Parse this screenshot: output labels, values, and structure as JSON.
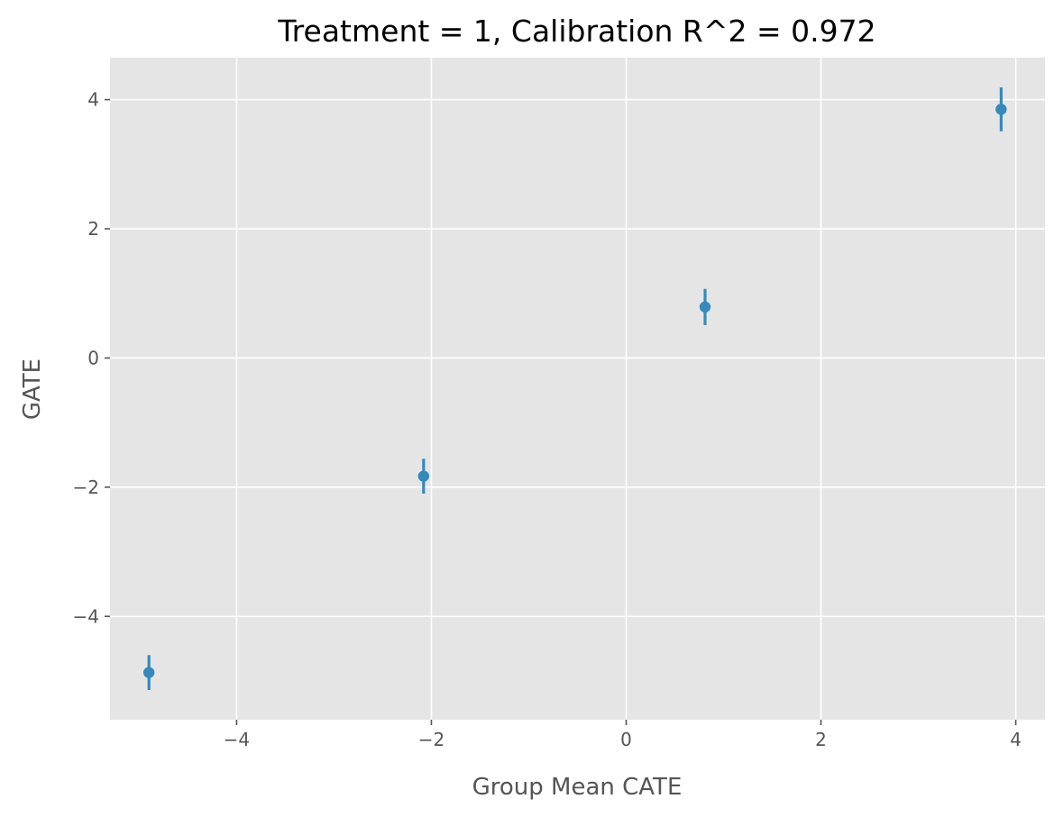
{
  "chart_data": {
    "type": "scatter",
    "title": "Treatment = 1, Calibration R^2 = 0.972",
    "xlabel": "Group Mean CATE",
    "ylabel": "GATE",
    "xlim": [
      -5.3,
      4.3
    ],
    "ylim": [
      -5.6,
      4.65
    ],
    "xticks": [
      -4,
      -2,
      0,
      2,
      4
    ],
    "yticks": [
      -4,
      -2,
      0,
      2,
      4
    ],
    "xtick_labels": [
      "−4",
      "−2",
      "0",
      "2",
      "4"
    ],
    "ytick_labels": [
      "−4",
      "−2",
      "0",
      "2",
      "4"
    ],
    "grid": true,
    "series": [
      {
        "x": [
          -4.9,
          -2.08,
          0.81,
          3.85
        ],
        "y": [
          -4.87,
          -1.83,
          0.79,
          3.85
        ],
        "yerr": [
          0.27,
          0.27,
          0.28,
          0.34
        ]
      }
    ],
    "colors": {
      "point": "#348ABD",
      "panel_bg": "#E5E5E5",
      "grid": "#FFFFFF",
      "tick": "#555555"
    }
  }
}
